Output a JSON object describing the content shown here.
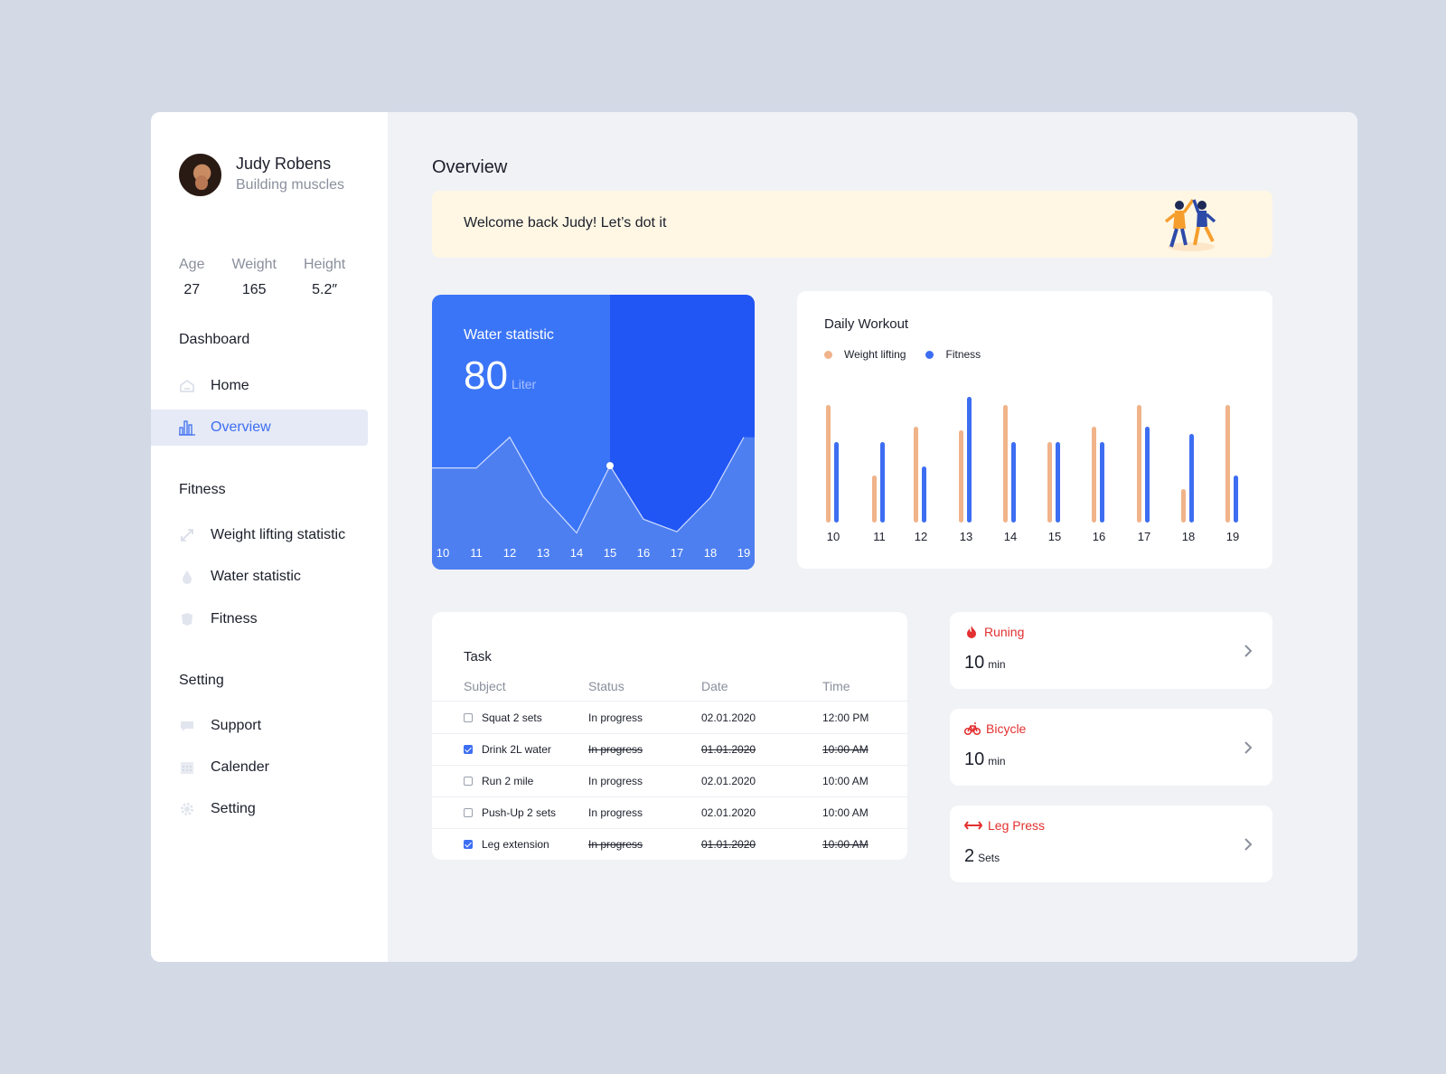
{
  "profile": {
    "name": "Judy Robens",
    "subtitle": "Building muscles"
  },
  "stats": [
    {
      "label": "Age",
      "value": "27"
    },
    {
      "label": "Weight",
      "value": "165"
    },
    {
      "label": "Height",
      "value": "5.2″"
    }
  ],
  "nav": {
    "dashboard_title": "Dashboard",
    "dashboard_items": [
      {
        "label": "Home",
        "icon": "home-icon"
      },
      {
        "label": "Overview",
        "icon": "bar-chart-icon",
        "active": true
      }
    ],
    "fitness_title": "Fitness",
    "fitness_items": [
      {
        "label": "Weight lifting statistic",
        "icon": "arrows-icon"
      },
      {
        "label": "Water statistic",
        "icon": "drop-icon"
      },
      {
        "label": "Fitness",
        "icon": "shield-icon"
      }
    ],
    "setting_title": "Setting",
    "setting_items": [
      {
        "label": "Support",
        "icon": "chat-icon"
      },
      {
        "label": "Calender",
        "icon": "calendar-icon"
      },
      {
        "label": "Setting",
        "icon": "gear-icon"
      }
    ]
  },
  "main": {
    "title": "Overview",
    "welcome": "Welcome back Judy! Let’s dot it"
  },
  "water": {
    "title": "Water statistic",
    "value": "80",
    "unit": "Liter",
    "colors": {
      "card": "#3b75f7",
      "highlight": "#2156f5",
      "area": "#4d7ff0"
    }
  },
  "workout": {
    "title": "Daily Workout",
    "colors": {
      "weight": "#f0b38a",
      "fitness": "#3d6ef2"
    }
  },
  "chart_data": [
    {
      "type": "area",
      "x": [
        "10",
        "11",
        "12",
        "13",
        "14",
        "15",
        "16",
        "17",
        "18",
        "19"
      ],
      "values": [
        5.9,
        5.9,
        8.6,
        3.4,
        0.2,
        6.1,
        1.4,
        0.3,
        3.3,
        8.6
      ],
      "highlight": "15",
      "ylim": [
        0,
        10
      ]
    },
    {
      "type": "bar",
      "categories": [
        "10",
        "11",
        "12",
        "13",
        "14",
        "15",
        "16",
        "17",
        "18",
        "19"
      ],
      "series": [
        {
          "name": "Weight lifting",
          "values": [
            130,
            52,
            106,
            102,
            130,
            89,
            106,
            130,
            37,
            130
          ]
        },
        {
          "name": "Fitness",
          "values": [
            89,
            89,
            62,
            139,
            89,
            89,
            89,
            106,
            98,
            52
          ]
        }
      ],
      "ylim": [
        0,
        140
      ],
      "legend": "top-left"
    }
  ],
  "task": {
    "title": "Task",
    "headers": [
      "Subject",
      "Status",
      "Date",
      "Time"
    ],
    "rows": [
      {
        "subject": "Squat 2 sets",
        "status": "In progress",
        "date": "02.01.2020",
        "time": "12:00 PM",
        "done": false
      },
      {
        "subject": "Drink 2L water",
        "status": "In progress",
        "date": "01.01.2020",
        "time": "10:00 AM",
        "done": true
      },
      {
        "subject": "Run 2 mile",
        "status": "In progress",
        "date": "02.01.2020",
        "time": "10:00 AM",
        "done": false
      },
      {
        "subject": "Push-Up 2 sets",
        "status": "In progress",
        "date": "02.01.2020",
        "time": "10:00 AM",
        "done": false
      },
      {
        "subject": "Leg extension",
        "status": "In progress",
        "date": "01.01.2020",
        "time": "10:00 AM",
        "done": true
      }
    ]
  },
  "activities": [
    {
      "label": "Runing",
      "value": "10",
      "unit": "min",
      "icon": "flame-icon"
    },
    {
      "label": "Bicycle",
      "value": "10",
      "unit": "min",
      "icon": "bicycle-icon"
    },
    {
      "label": "Leg Press",
      "value": "2",
      "unit": "Sets",
      "icon": "dumbbell-icon"
    }
  ]
}
